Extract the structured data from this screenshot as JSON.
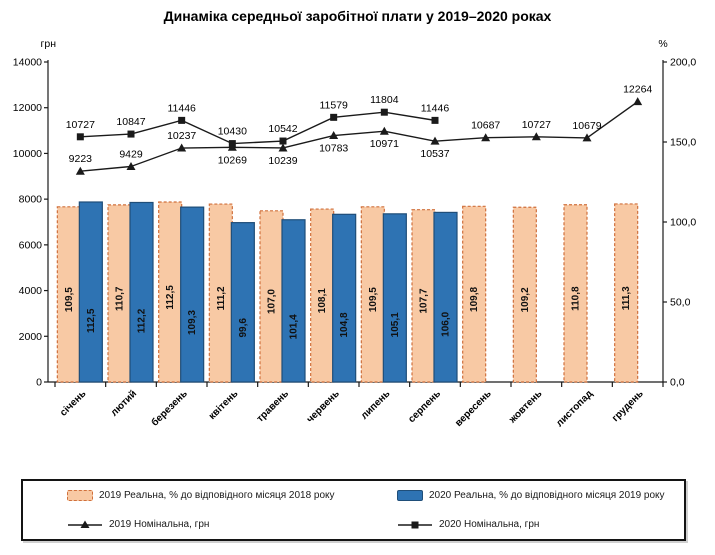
{
  "title": "Динаміка середньої заробітної плати у 2019–2020 роках",
  "left_axis": {
    "label": "грн",
    "max": 14000,
    "ticks": [
      "0",
      "2000",
      "4000",
      "6000",
      "8000",
      "10000",
      "12000",
      "14000"
    ]
  },
  "right_axis": {
    "label": "%",
    "max": 200,
    "ticks": [
      "0,0",
      "50,0",
      "100,0",
      "150,0",
      "200,0"
    ]
  },
  "chart_data": {
    "type": "combo-bar-line",
    "title": "Динаміка середньої заробітної плати у 2019–2020 роках",
    "categories": [
      "січень",
      "лютий",
      "березень",
      "квітень",
      "травень",
      "червень",
      "липень",
      "серпень",
      "вересень",
      "жовтень",
      "листопад",
      "грудень"
    ],
    "ylim_left": [
      0,
      14000
    ],
    "ylim_right": [
      0,
      200
    ],
    "grid": false,
    "legend_position": "bottom",
    "series": [
      {
        "name": "2019 Реальна, % до відповідного місяця 2018 року",
        "type": "bar",
        "axis": "right",
        "color": "#F8C9A4",
        "border_color": "#D0703C",
        "values": [
          109.5,
          110.7,
          112.5,
          111.2,
          107.0,
          108.1,
          109.5,
          107.7,
          109.8,
          109.2,
          110.8,
          111.3
        ],
        "labels": [
          "109,5",
          "110,7",
          "112,5",
          "111,2",
          "107,0",
          "108,1",
          "109,5",
          "107,7",
          "109,8",
          "109,2",
          "110,8",
          "111,3"
        ]
      },
      {
        "name": "2020 Реальна, % до відповідного місяця 2019 року",
        "type": "bar",
        "axis": "right",
        "color": "#2E73B3",
        "border_color": "#1F4E79",
        "values": [
          112.5,
          112.2,
          109.3,
          99.6,
          101.4,
          104.8,
          105.1,
          106.0,
          null,
          null,
          null,
          null
        ],
        "labels": [
          "112,5",
          "112,2",
          "109,3",
          "99,6",
          "101,4",
          "104,8",
          "105,1",
          "106,0",
          null,
          null,
          null,
          null
        ]
      },
      {
        "name": "2019 Номінальна, грн",
        "type": "line",
        "marker": "triangle",
        "axis": "left",
        "color": "#1a1a1a",
        "values": [
          9223,
          9429,
          10237,
          10269,
          10239,
          10783,
          10971,
          10537,
          10687,
          10727,
          10679,
          12264
        ],
        "labels": [
          "9223",
          "9429",
          "10237",
          "10269",
          "10239",
          "10783",
          "10971",
          "10537",
          "10687",
          "10727",
          "10679",
          "12264"
        ],
        "label_positions": [
          "above",
          "above",
          "above",
          "below",
          "below",
          "below",
          "below",
          "below",
          "above",
          "above",
          "above",
          "above"
        ]
      },
      {
        "name": "2020 Номінальна, грн",
        "type": "line",
        "marker": "square",
        "axis": "left",
        "color": "#1a1a1a",
        "values": [
          10727,
          10847,
          11446,
          10430,
          10542,
          11579,
          11804,
          11446,
          null,
          null,
          null,
          null
        ],
        "labels": [
          "10727",
          "10847",
          "11446",
          "10430",
          "10542",
          "11579",
          "11804",
          "11446",
          null,
          null,
          null,
          null
        ],
        "label_positions": [
          "above",
          "above",
          "above",
          "above",
          "above",
          "above",
          "above",
          "above",
          null,
          null,
          null,
          null
        ]
      }
    ]
  },
  "legend": {
    "items": [
      {
        "label": "2019 Реальна, % до відповідного місяця 2018 року"
      },
      {
        "label": "2020 Реальна, % до відповідного місяця 2019 року"
      },
      {
        "label": "2019 Номінальна, грн"
      },
      {
        "label": "2020 Номінальна, грн"
      }
    ]
  }
}
